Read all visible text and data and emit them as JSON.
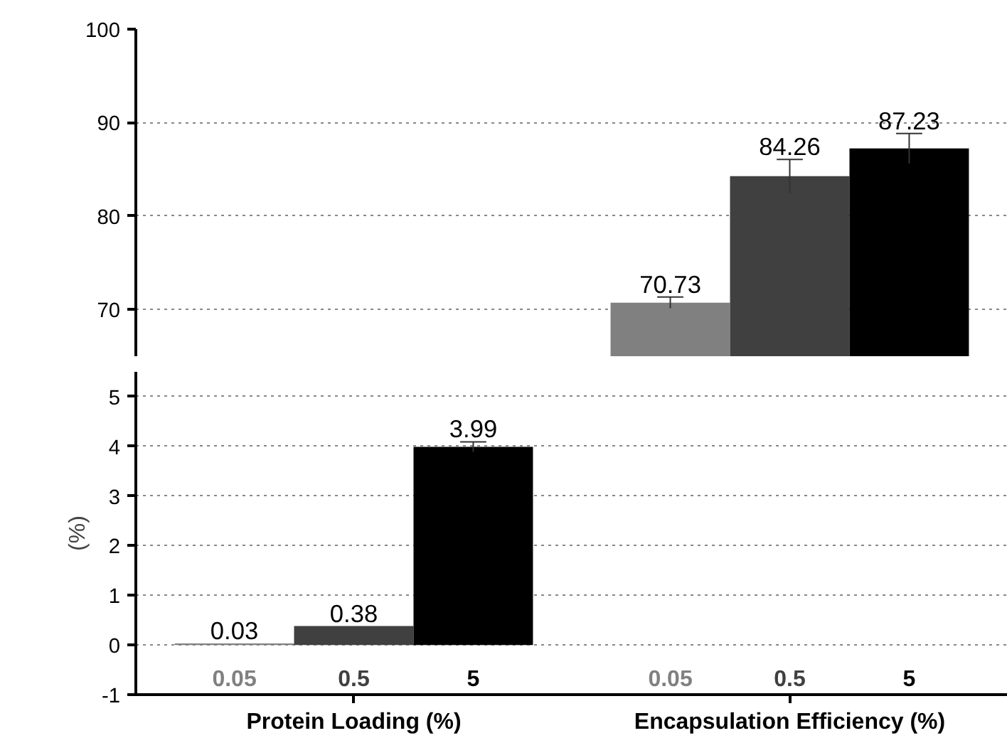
{
  "chart_data": [
    {
      "type": "bar",
      "categories": [
        null,
        null
      ],
      "ylim": [
        65,
        100
      ],
      "yticks": [
        70,
        80,
        90,
        100
      ],
      "grid": "y",
      "tick_labels": "y",
      "series": [
        {
          "color": "#808080",
          "values": [
            null,
            70.73
          ],
          "errors": [
            null,
            0.6
          ],
          "value_labels": [
            null,
            "70.73"
          ]
        },
        {
          "color": "#404040",
          "values": [
            null,
            84.26
          ],
          "errors": [
            null,
            1.8
          ],
          "value_labels": [
            null,
            "84.26"
          ]
        },
        {
          "color": "#000000",
          "values": [
            null,
            87.23
          ],
          "errors": [
            null,
            1.6
          ],
          "value_labels": [
            null,
            "87.23"
          ]
        }
      ]
    },
    {
      "type": "bar",
      "categories": [
        "Protein Loading (%)",
        "Encapsulation Efficiency (%)"
      ],
      "ylabel": "(%)",
      "ylim": [
        -1,
        5.5
      ],
      "yticks": [
        -1,
        0,
        1,
        2,
        3,
        4,
        5
      ],
      "grid": "y",
      "series": [
        {
          "name": "0.05",
          "color": "#808080",
          "values": [
            0.03,
            null
          ],
          "errors": [
            null,
            null
          ],
          "value_labels": [
            "0.03",
            null
          ]
        },
        {
          "name": "0.5",
          "color": "#404040",
          "values": [
            0.38,
            null
          ],
          "errors": [
            null,
            null
          ],
          "value_labels": [
            "0.38",
            null
          ]
        },
        {
          "name": "5",
          "color": "#000000",
          "values": [
            3.99,
            null
          ],
          "errors": [
            0.1,
            null
          ],
          "value_labels": [
            "3.99",
            null
          ]
        }
      ]
    }
  ]
}
